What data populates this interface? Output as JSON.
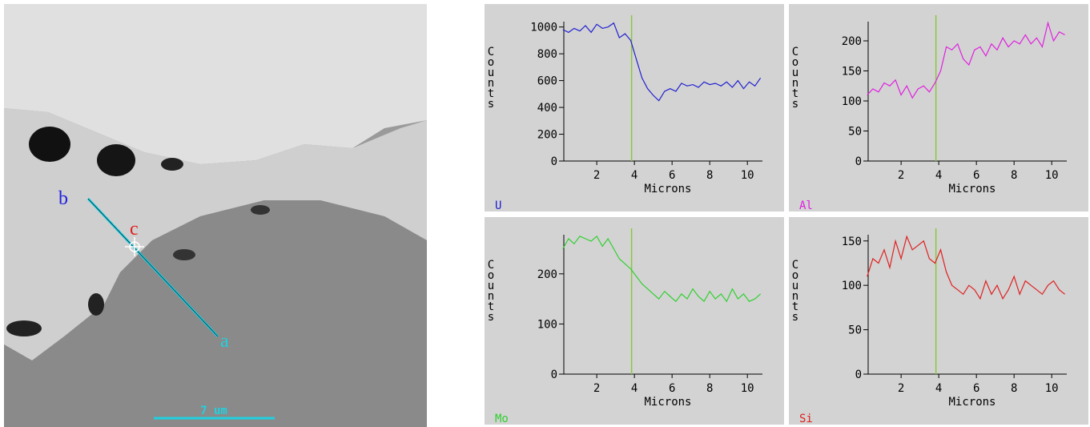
{
  "image": {
    "labels": {
      "a": "a",
      "b": "b",
      "c": "c"
    },
    "scale_bar": "7 um"
  },
  "chart_data": [
    {
      "type": "line",
      "xlabel": "Microns",
      "ylabel": "Counts",
      "xlim": [
        0.25,
        10.8
      ],
      "xticks": [
        2,
        4,
        6,
        8,
        10
      ],
      "ylim": [
        0,
        1040
      ],
      "yticks": [
        0,
        200,
        400,
        600,
        800,
        1000
      ],
      "marker_x": 3.85,
      "marker_color": "#8cc63f",
      "x": [
        0.2,
        0.5,
        0.8,
        1.1,
        1.4,
        1.7,
        2.0,
        2.3,
        2.6,
        2.9,
        3.2,
        3.5,
        3.8,
        4.1,
        4.4,
        4.7,
        5.0,
        5.3,
        5.6,
        5.9,
        6.2,
        6.5,
        6.8,
        7.1,
        7.4,
        7.7,
        8.0,
        8.3,
        8.6,
        8.9,
        9.2,
        9.5,
        9.8,
        10.1,
        10.4,
        10.7
      ],
      "series": [
        {
          "name": "U",
          "color": "#2020d0",
          "values": [
            980,
            960,
            990,
            970,
            1010,
            960,
            1020,
            990,
            1000,
            1030,
            920,
            950,
            900,
            760,
            620,
            540,
            490,
            450,
            520,
            540,
            520,
            580,
            560,
            570,
            550,
            590,
            570,
            580,
            560,
            590,
            550,
            600,
            540,
            590,
            560,
            620
          ]
        }
      ]
    },
    {
      "type": "line",
      "xlabel": "Microns",
      "ylabel": "Counts",
      "xlim": [
        0.25,
        10.8
      ],
      "xticks": [
        2,
        4,
        6,
        8,
        10
      ],
      "ylim": [
        0,
        232
      ],
      "yticks": [
        0,
        50,
        100,
        150,
        200
      ],
      "marker_x": 3.85,
      "marker_color": "#8cc63f",
      "x": [
        0.2,
        0.5,
        0.8,
        1.1,
        1.4,
        1.7,
        2.0,
        2.3,
        2.6,
        2.9,
        3.2,
        3.5,
        3.8,
        4.1,
        4.4,
        4.7,
        5.0,
        5.3,
        5.6,
        5.9,
        6.2,
        6.5,
        6.8,
        7.1,
        7.4,
        7.7,
        8.0,
        8.3,
        8.6,
        8.9,
        9.2,
        9.5,
        9.8,
        10.1,
        10.4,
        10.7
      ],
      "series": [
        {
          "name": "Al",
          "color": "#e020e0",
          "values": [
            110,
            120,
            115,
            130,
            125,
            135,
            110,
            125,
            105,
            120,
            125,
            115,
            130,
            150,
            190,
            185,
            195,
            170,
            160,
            185,
            190,
            175,
            195,
            185,
            205,
            190,
            200,
            195,
            210,
            195,
            205,
            190,
            230,
            200,
            215,
            210
          ]
        }
      ]
    },
    {
      "type": "line",
      "xlabel": "Microns",
      "ylabel": "Counts",
      "xlim": [
        0.25,
        10.8
      ],
      "xticks": [
        2,
        4,
        6,
        8,
        10
      ],
      "ylim": [
        0,
        278
      ],
      "yticks": [
        0,
        100,
        200
      ],
      "marker_x": 3.85,
      "marker_color": "#8cc63f",
      "x": [
        0.2,
        0.5,
        0.8,
        1.1,
        1.4,
        1.7,
        2.0,
        2.3,
        2.6,
        2.9,
        3.2,
        3.5,
        3.8,
        4.1,
        4.4,
        4.7,
        5.0,
        5.3,
        5.6,
        5.9,
        6.2,
        6.5,
        6.8,
        7.1,
        7.4,
        7.7,
        8.0,
        8.3,
        8.6,
        8.9,
        9.2,
        9.5,
        9.8,
        10.1,
        10.4,
        10.7
      ],
      "series": [
        {
          "name": "Mo",
          "color": "#30d030",
          "values": [
            250,
            270,
            260,
            275,
            270,
            265,
            275,
            255,
            270,
            250,
            230,
            220,
            210,
            195,
            180,
            170,
            160,
            150,
            165,
            155,
            145,
            160,
            150,
            170,
            155,
            145,
            165,
            150,
            160,
            145,
            170,
            150,
            160,
            145,
            150,
            160
          ]
        }
      ]
    },
    {
      "type": "line",
      "xlabel": "Microns",
      "ylabel": "Counts",
      "xlim": [
        0.25,
        10.8
      ],
      "xticks": [
        2,
        4,
        6,
        8,
        10
      ],
      "ylim": [
        0,
        157
      ],
      "yticks": [
        0,
        50,
        100,
        150
      ],
      "marker_x": 3.85,
      "marker_color": "#8cc63f",
      "x": [
        0.2,
        0.5,
        0.8,
        1.1,
        1.4,
        1.7,
        2.0,
        2.3,
        2.6,
        2.9,
        3.2,
        3.5,
        3.8,
        4.1,
        4.4,
        4.7,
        5.0,
        5.3,
        5.6,
        5.9,
        6.2,
        6.5,
        6.8,
        7.1,
        7.4,
        7.7,
        8.0,
        8.3,
        8.6,
        8.9,
        9.2,
        9.5,
        9.8,
        10.1,
        10.4,
        10.7
      ],
      "series": [
        {
          "name": "Si",
          "color": "#e02020",
          "values": [
            110,
            130,
            125,
            140,
            120,
            150,
            130,
            155,
            140,
            145,
            150,
            130,
            125,
            140,
            115,
            100,
            95,
            90,
            100,
            95,
            85,
            105,
            90,
            100,
            85,
            95,
            110,
            90,
            105,
            100,
            95,
            90,
            100,
            105,
            95,
            90
          ]
        }
      ]
    }
  ]
}
